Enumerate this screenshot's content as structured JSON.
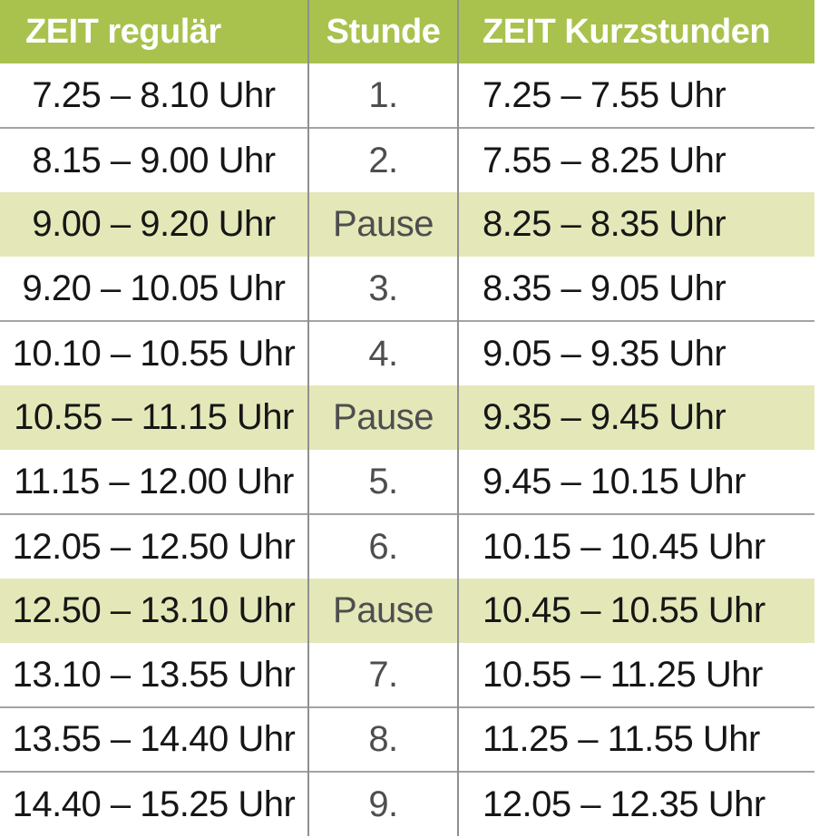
{
  "table": {
    "columns": [
      {
        "label": "ZEIT regulär"
      },
      {
        "label": "Stunde"
      },
      {
        "label": "ZEIT Kurzstunden"
      }
    ],
    "rows": [
      {
        "regular": "7.25 – 8.10 Uhr",
        "stunde": "1.",
        "kurz": "7.25 – 7.55 Uhr",
        "pause": false
      },
      {
        "regular": "8.15 – 9.00 Uhr",
        "stunde": "2.",
        "kurz": "7.55 – 8.25 Uhr",
        "pause": false
      },
      {
        "regular": "9.00 – 9.20 Uhr",
        "stunde": "Pause",
        "kurz": "8.25 – 8.35 Uhr",
        "pause": true
      },
      {
        "regular": "9.20 – 10.05 Uhr",
        "stunde": "3.",
        "kurz": "8.35 – 9.05 Uhr",
        "pause": false
      },
      {
        "regular": "10.10 – 10.55 Uhr",
        "stunde": "4.",
        "kurz": "9.05 – 9.35 Uhr",
        "pause": false
      },
      {
        "regular": "10.55 – 11.15 Uhr",
        "stunde": "Pause",
        "kurz": "9.35 – 9.45 Uhr",
        "pause": true
      },
      {
        "regular": "11.15 – 12.00 Uhr",
        "stunde": "5.",
        "kurz": "9.45 – 10.15 Uhr",
        "pause": false
      },
      {
        "regular": "12.05 – 12.50 Uhr",
        "stunde": "6.",
        "kurz": "10.15 – 10.45 Uhr",
        "pause": false
      },
      {
        "regular": "12.50 – 13.10 Uhr",
        "stunde": "Pause",
        "kurz": "10.45 – 10.55 Uhr",
        "pause": true
      },
      {
        "regular": "13.10 – 13.55 Uhr",
        "stunde": "7.",
        "kurz": "10.55 – 11.25 Uhr",
        "pause": false
      },
      {
        "regular": "13.55 – 14.40 Uhr",
        "stunde": "8.",
        "kurz": "11.25 – 11.55 Uhr",
        "pause": false
      },
      {
        "regular": "14.40 – 15.25 Uhr",
        "stunde": "9.",
        "kurz": "12.05 – 12.35 Uhr",
        "pause": false
      }
    ],
    "colors": {
      "header_bg": "#a8c24d",
      "pause_bg": "#e4e8b8",
      "header_text": "#ffffff",
      "time_text": "#161616",
      "stunde_text": "#4e4e4e",
      "grid_line_horizontal": "#a3a3a3",
      "grid_line_vertical": "#8f8f8f"
    }
  }
}
